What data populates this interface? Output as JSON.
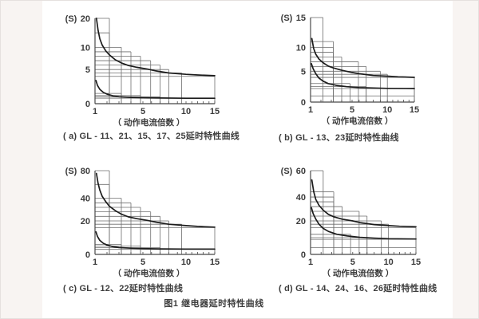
{
  "figure": {
    "caption": "图1 继电器延时特性曲线"
  },
  "chart_data": [
    {
      "type": "line",
      "panel": "a",
      "caption": "( a) GL - 11、21、15、17、25延时特性曲线",
      "ylabel": "(S)",
      "xlabel": "（ 动作电流倍数 ）",
      "x_ticks": [
        1,
        5,
        10,
        15
      ],
      "y_ticks": [
        0,
        5,
        10,
        20
      ],
      "xlim": [
        1,
        15
      ],
      "ylim": [
        0,
        20
      ],
      "x_anchors": [
        [
          1,
          0
        ],
        [
          5,
          0.4
        ],
        [
          10,
          0.76
        ],
        [
          15,
          1
        ]
      ],
      "y_anchors": [
        [
          0,
          0
        ],
        [
          5,
          0.4
        ],
        [
          10,
          0.66
        ],
        [
          20,
          1
        ]
      ],
      "grid": true,
      "legend": "none",
      "bands": [
        [
          20,
          2.2
        ],
        [
          15,
          2.2
        ],
        [
          10,
          3.2
        ],
        [
          9,
          4
        ],
        [
          8,
          4.8
        ],
        [
          7,
          5.9
        ],
        [
          6,
          7
        ],
        [
          5,
          8
        ],
        [
          4.5,
          9.5
        ],
        [
          4,
          15
        ],
        [
          1.5,
          3.2
        ],
        [
          1.2,
          4.8
        ],
        [
          1,
          7
        ],
        [
          0.8,
          15
        ]
      ],
      "series": [
        {
          "name": "upper-limit-curve",
          "points": [
            [
              1.12,
              20
            ],
            [
              1.25,
              16
            ],
            [
              1.4,
              13
            ],
            [
              1.6,
              10.8
            ],
            [
              1.9,
              9.2
            ],
            [
              2.2,
              8.3
            ],
            [
              2.7,
              7.2
            ],
            [
              3.2,
              6.5
            ],
            [
              3.8,
              5.9
            ],
            [
              4.5,
              5.5
            ],
            [
              5.5,
              5.1
            ],
            [
              6.5,
              4.8
            ],
            [
              8,
              4.5
            ],
            [
              10,
              4.3
            ],
            [
              12,
              4.2
            ],
            [
              15,
              4.1
            ]
          ]
        },
        {
          "name": "lower-limit-curve",
          "points": [
            [
              1.08,
              3.4
            ],
            [
              1.2,
              2.7
            ],
            [
              1.4,
              2.1
            ],
            [
              1.7,
              1.65
            ],
            [
              2,
              1.4
            ],
            [
              2.5,
              1.15
            ],
            [
              3,
              1.02
            ],
            [
              4,
              0.92
            ],
            [
              5,
              0.87
            ],
            [
              7,
              0.83
            ],
            [
              10,
              0.8
            ],
            [
              15,
              0.8
            ]
          ]
        }
      ]
    },
    {
      "type": "line",
      "panel": "b",
      "caption": "( b) GL - 13、23延时特性曲线",
      "ylabel": "(S)",
      "xlabel": "（ 动作电流倍数 ）",
      "x_ticks": [
        1,
        5,
        10,
        15
      ],
      "y_ticks": [
        0,
        5,
        10,
        15
      ],
      "xlim": [
        1,
        15
      ],
      "ylim": [
        0,
        15
      ],
      "x_anchors": [
        [
          1,
          0
        ],
        [
          5,
          0.4
        ],
        [
          10,
          0.74
        ],
        [
          15,
          1
        ]
      ],
      "y_anchors": [
        [
          0,
          0
        ],
        [
          5,
          0.365
        ],
        [
          10,
          0.645
        ],
        [
          15,
          1
        ]
      ],
      "grid": true,
      "legend": "none",
      "bands": [
        [
          15,
          2.2
        ],
        [
          11,
          3.2
        ],
        [
          10,
          3.2
        ],
        [
          9,
          3.2
        ],
        [
          8,
          4
        ],
        [
          7,
          5.9
        ],
        [
          6,
          7
        ],
        [
          5,
          9
        ],
        [
          4.5,
          10
        ],
        [
          4,
          15
        ],
        [
          3,
          4.8
        ],
        [
          2.5,
          7
        ],
        [
          2.2,
          15
        ],
        [
          1,
          15
        ]
      ],
      "series": [
        {
          "name": "upper-limit-curve",
          "points": [
            [
              1.12,
              11.5
            ],
            [
              1.3,
              9.8
            ],
            [
              1.5,
              8.6
            ],
            [
              1.8,
              7.6
            ],
            [
              2.2,
              6.8
            ],
            [
              2.7,
              6.1
            ],
            [
              3.2,
              5.7
            ],
            [
              4,
              5.2
            ],
            [
              5,
              4.8
            ],
            [
              6,
              4.6
            ],
            [
              8,
              4.3
            ],
            [
              10,
              4.2
            ],
            [
              12,
              4.1
            ],
            [
              15,
              4
            ]
          ]
        },
        {
          "name": "lower-limit-curve",
          "points": [
            [
              1.08,
              6.6
            ],
            [
              1.25,
              5.5
            ],
            [
              1.5,
              4.6
            ],
            [
              1.8,
              3.9
            ],
            [
              2.2,
              3.4
            ],
            [
              2.7,
              3
            ],
            [
              3.5,
              2.7
            ],
            [
              4.5,
              2.5
            ],
            [
              6,
              2.35
            ],
            [
              8,
              2.27
            ],
            [
              10,
              2.22
            ],
            [
              15,
              2.2
            ]
          ]
        }
      ]
    },
    {
      "type": "line",
      "panel": "c",
      "caption": "( c) GL - 12、22延时特性曲线",
      "ylabel": "(S)",
      "xlabel": "（ 动作电流倍数 ）",
      "x_ticks": [
        1,
        5,
        10,
        15
      ],
      "y_ticks": [
        0,
        20,
        40,
        80
      ],
      "xlim": [
        1,
        15
      ],
      "ylim": [
        0,
        80
      ],
      "x_anchors": [
        [
          1,
          0
        ],
        [
          5,
          0.4
        ],
        [
          10,
          0.76
        ],
        [
          15,
          1
        ]
      ],
      "y_anchors": [
        [
          0,
          0
        ],
        [
          20,
          0.4
        ],
        [
          40,
          0.67
        ],
        [
          80,
          1
        ]
      ],
      "grid": true,
      "legend": "none",
      "bands": [
        [
          80,
          2.2
        ],
        [
          60,
          2.2
        ],
        [
          40,
          3.2
        ],
        [
          36,
          4
        ],
        [
          32,
          4.8
        ],
        [
          28,
          5.9
        ],
        [
          24,
          7
        ],
        [
          20,
          8
        ],
        [
          18,
          9.5
        ],
        [
          16,
          15
        ],
        [
          6,
          3.2
        ],
        [
          5,
          4.8
        ],
        [
          4,
          7
        ],
        [
          3,
          15
        ]
      ],
      "series": [
        {
          "name": "upper-limit-curve",
          "points": [
            [
              1.12,
              76
            ],
            [
              1.25,
              62
            ],
            [
              1.4,
              52
            ],
            [
              1.6,
              43
            ],
            [
              1.9,
              37
            ],
            [
              2.2,
              33
            ],
            [
              2.7,
              29
            ],
            [
              3.2,
              26
            ],
            [
              3.8,
              23.5
            ],
            [
              4.5,
              22
            ],
            [
              5.5,
              20.5
            ],
            [
              6.5,
              19.3
            ],
            [
              8,
              18
            ],
            [
              10,
              17.2
            ],
            [
              12,
              16.7
            ],
            [
              15,
              16.3
            ]
          ]
        },
        {
          "name": "lower-limit-curve",
          "points": [
            [
              1.08,
              13.5
            ],
            [
              1.2,
              10.8
            ],
            [
              1.4,
              8.4
            ],
            [
              1.7,
              6.6
            ],
            [
              2,
              5.6
            ],
            [
              2.5,
              4.6
            ],
            [
              3,
              4.1
            ],
            [
              4,
              3.7
            ],
            [
              5,
              3.5
            ],
            [
              7,
              3.3
            ],
            [
              10,
              3.2
            ],
            [
              15,
              3.2
            ]
          ]
        }
      ]
    },
    {
      "type": "line",
      "panel": "d",
      "caption": "( d) GL - 14、24、16、26延时特性曲线",
      "ylabel": "(S)",
      "xlabel": "（ 动作电流倍数 ）",
      "x_ticks": [
        1,
        5,
        10,
        15
      ],
      "y_ticks": [
        0,
        20,
        40,
        60
      ],
      "xlim": [
        1,
        15
      ],
      "ylim": [
        0,
        60
      ],
      "x_anchors": [
        [
          1,
          0
        ],
        [
          5,
          0.4
        ],
        [
          10,
          0.74
        ],
        [
          15,
          1
        ]
      ],
      "y_anchors": [
        [
          0,
          0
        ],
        [
          20,
          0.4
        ],
        [
          40,
          0.685
        ],
        [
          60,
          1
        ]
      ],
      "grid": true,
      "legend": "none",
      "bands": [
        [
          60,
          2.2
        ],
        [
          44,
          3.2
        ],
        [
          40,
          3.2
        ],
        [
          36,
          3.2
        ],
        [
          32,
          4
        ],
        [
          28,
          5.9
        ],
        [
          24,
          7
        ],
        [
          20,
          9
        ],
        [
          18,
          10
        ],
        [
          16,
          15
        ],
        [
          12,
          4.8
        ],
        [
          10,
          7
        ],
        [
          9,
          15
        ],
        [
          4,
          15
        ]
      ],
      "series": [
        {
          "name": "upper-limit-curve",
          "points": [
            [
              1.12,
              53
            ],
            [
              1.3,
              44
            ],
            [
              1.5,
              38
            ],
            [
              1.8,
              33
            ],
            [
              2.2,
              29
            ],
            [
              2.7,
              25.5
            ],
            [
              3.2,
              23.5
            ],
            [
              4,
              21.5
            ],
            [
              5,
              20
            ],
            [
              6,
              19
            ],
            [
              8,
              17.8
            ],
            [
              10,
              17.2
            ],
            [
              12,
              16.8
            ],
            [
              15,
              16.5
            ]
          ]
        },
        {
          "name": "lower-limit-curve",
          "points": [
            [
              1.08,
              31
            ],
            [
              1.25,
              26
            ],
            [
              1.5,
              21.5
            ],
            [
              1.8,
              18
            ],
            [
              2.2,
              15.5
            ],
            [
              2.7,
              13.7
            ],
            [
              3.5,
              12
            ],
            [
              4.5,
              11
            ],
            [
              6,
              10.2
            ],
            [
              8,
              9.7
            ],
            [
              10,
              9.4
            ],
            [
              15,
              9.2
            ]
          ]
        }
      ]
    }
  ]
}
